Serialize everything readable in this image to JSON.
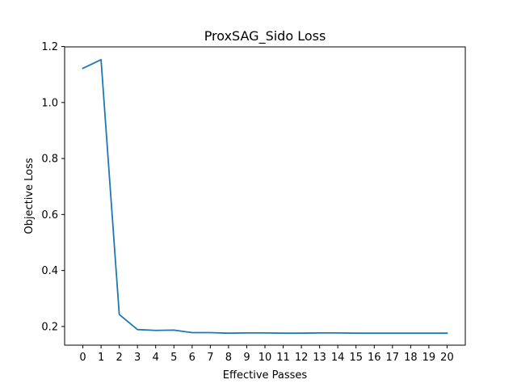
{
  "chart_data": {
    "type": "line",
    "title": "ProxSAG_Sido Loss",
    "xlabel": "Effective Passes",
    "ylabel": "Objective Loss",
    "x": [
      0,
      1,
      2,
      3,
      4,
      5,
      6,
      7,
      8,
      9,
      10,
      11,
      12,
      13,
      14,
      15,
      16,
      17,
      18,
      19,
      20
    ],
    "series": [
      {
        "values": [
          1.122,
          1.153,
          0.243,
          0.189,
          0.186,
          0.187,
          0.178,
          0.178,
          0.176,
          0.177,
          0.177,
          0.176,
          0.176,
          0.177,
          0.177,
          0.176,
          0.176,
          0.176,
          0.176,
          0.176,
          0.176
        ],
        "color": "#1f77b4"
      }
    ],
    "xticks": [
      0,
      1,
      2,
      3,
      4,
      5,
      6,
      7,
      8,
      9,
      10,
      11,
      12,
      13,
      14,
      15,
      16,
      17,
      18,
      19,
      20
    ],
    "yticks": [
      "0.2",
      "0.4",
      "0.6",
      "0.8",
      "1.0",
      "1.2"
    ],
    "xlim": [
      -1,
      21
    ],
    "ylim": [
      0.1333,
      1.1987
    ],
    "grid": false
  }
}
